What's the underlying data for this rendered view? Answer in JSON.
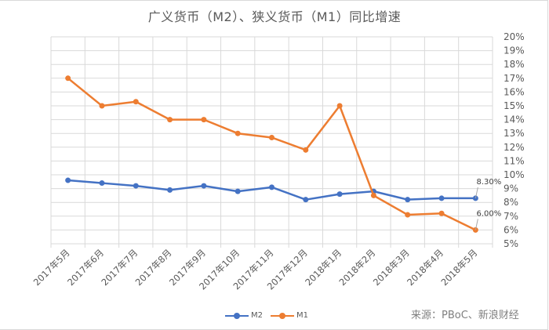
{
  "chart_data": {
    "type": "line",
    "title": "广义货币（M2）、狭义货币（M1）同比增速",
    "xlabel": "",
    "ylabel": "",
    "categories": [
      "2017年5月",
      "2017年6月",
      "2017年7月",
      "2017年8月",
      "2017年9月",
      "2017年10月",
      "2017年11月",
      "2017年12月",
      "2018年1月",
      "2018年2月",
      "2018年3月",
      "2018年4月",
      "2018年5月"
    ],
    "series": [
      {
        "name": "M2",
        "color": "#4472c4",
        "values": [
          9.6,
          9.4,
          9.2,
          8.9,
          9.2,
          8.8,
          9.1,
          8.2,
          8.6,
          8.8,
          8.2,
          8.3,
          8.3
        ],
        "end_label": "8.30%"
      },
      {
        "name": "M1",
        "color": "#ed7d31",
        "values": [
          17.0,
          15.0,
          15.3,
          14.0,
          14.0,
          13.0,
          12.7,
          11.8,
          15.0,
          8.5,
          7.1,
          7.2,
          6.0
        ],
        "end_label": "6.00%"
      }
    ],
    "ylim": [
      5,
      20
    ],
    "y_ticks": [
      "20%",
      "19%",
      "18%",
      "17%",
      "16%",
      "15%",
      "14%",
      "13%",
      "12%",
      "11%",
      "10%",
      "9%",
      "8%",
      "7%",
      "6%",
      "5%"
    ],
    "y_axis_position": "right",
    "grid": true,
    "legend_position": "bottom"
  },
  "source": "来源：PBoC、新浪财经"
}
